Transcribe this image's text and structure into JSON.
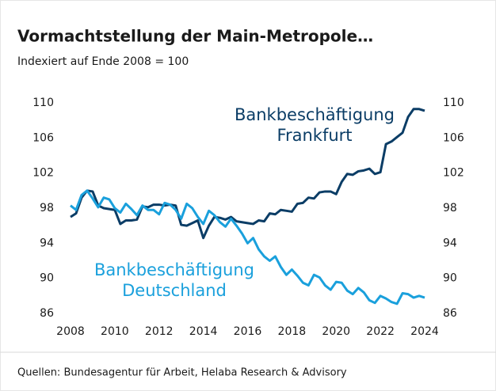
{
  "chart_data": {
    "type": "line",
    "title": "Vormachtstellung der Main-Metropole…",
    "subtitle": "Indexiert auf Ende 2008 = 100",
    "source": "Quellen: Bundesagentur für Arbeit, Helaba Research & Advisory",
    "x": [
      2008,
      2008.25,
      2008.5,
      2008.75,
      2009,
      2009.25,
      2009.5,
      2009.75,
      2010,
      2010.25,
      2010.5,
      2010.75,
      2011,
      2011.25,
      2011.5,
      2011.75,
      2012,
      2012.25,
      2012.5,
      2012.75,
      2013,
      2013.25,
      2013.5,
      2013.75,
      2014,
      2014.25,
      2014.5,
      2014.75,
      2015,
      2015.25,
      2015.5,
      2015.75,
      2016,
      2016.25,
      2016.5,
      2016.75,
      2017,
      2017.25,
      2017.5,
      2017.75,
      2018,
      2018.25,
      2018.5,
      2018.75,
      2019,
      2019.25,
      2019.5,
      2019.75,
      2020,
      2020.25,
      2020.5,
      2020.75,
      2021,
      2021.25,
      2021.5,
      2021.75,
      2022,
      2022.25,
      2022.5,
      2022.75,
      2023,
      2023.25,
      2023.5,
      2023.75,
      2024
    ],
    "series": [
      {
        "name_lines": [
          "Bankbeschäftigung",
          "Frankfurt"
        ],
        "color": "#0b3d66",
        "values": [
          97.0,
          97.4,
          99.2,
          100.0,
          99.9,
          98.3,
          98.0,
          97.9,
          97.8,
          96.2,
          96.6,
          96.6,
          96.7,
          98.2,
          98.1,
          98.4,
          98.4,
          98.3,
          98.4,
          98.3,
          96.1,
          96.0,
          96.3,
          96.6,
          94.6,
          96.0,
          97.0,
          96.9,
          96.7,
          97.0,
          96.5,
          96.4,
          96.3,
          96.2,
          96.6,
          96.5,
          97.4,
          97.3,
          97.8,
          97.7,
          97.6,
          98.5,
          98.6,
          99.2,
          99.1,
          99.8,
          99.9,
          99.9,
          99.6,
          101.0,
          101.9,
          101.8,
          102.2,
          102.3,
          102.5,
          101.9,
          102.1,
          105.3,
          105.6,
          106.1,
          106.6,
          108.4,
          109.3,
          109.3,
          109.1
        ]
      },
      {
        "name_lines": [
          "Bankbeschäftigung",
          "Deutschland"
        ],
        "color": "#1aa0dc",
        "values": [
          98.3,
          97.8,
          99.5,
          100.0,
          99.1,
          98.1,
          99.2,
          99.0,
          98.0,
          97.5,
          98.5,
          97.9,
          97.2,
          98.3,
          97.8,
          97.8,
          97.3,
          98.6,
          98.4,
          97.8,
          96.8,
          98.5,
          98.0,
          97.0,
          96.2,
          97.7,
          97.2,
          96.4,
          95.9,
          96.8,
          96.0,
          95.1,
          94.0,
          94.6,
          93.3,
          92.5,
          92.0,
          92.5,
          91.3,
          90.4,
          91.0,
          90.3,
          89.5,
          89.2,
          90.4,
          90.1,
          89.2,
          88.7,
          89.6,
          89.5,
          88.6,
          88.2,
          88.9,
          88.4,
          87.5,
          87.2,
          88.0,
          87.7,
          87.3,
          87.1,
          88.3,
          88.2,
          87.8,
          88.0,
          87.8
        ]
      }
    ],
    "xlim": [
      2008,
      2024
    ],
    "xticks": [
      2008,
      2010,
      2012,
      2014,
      2016,
      2018,
      2020,
      2022,
      2024
    ],
    "ylim": [
      86,
      110
    ],
    "yticks": [
      86,
      90,
      94,
      98,
      102,
      106,
      110
    ],
    "y2lim": [
      86,
      110
    ],
    "y2ticks": [
      86,
      90,
      94,
      98,
      102,
      106,
      110
    ]
  }
}
